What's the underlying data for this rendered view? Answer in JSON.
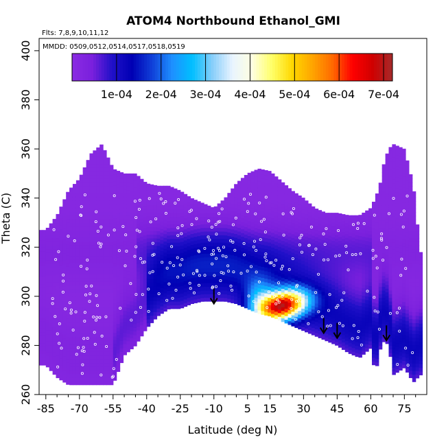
{
  "chart_data": {
    "type": "heatmap",
    "title": "ATOM4 Northbound Ethanol_GMI",
    "flights_note": "Flts: 7,8,9,10,11,12",
    "dates_note": "MMDD: 0509,0512,0514,0517,0518,0519",
    "xlabel": "Latitude (deg N)",
    "ylabel": "Theta (C)",
    "xlim": [
      -88,
      85
    ],
    "ylim": [
      260,
      405
    ],
    "x_ticks": [
      -85,
      -70,
      -55,
      -40,
      -25,
      -10,
      5,
      15,
      30,
      45,
      60,
      75
    ],
    "x_minor_ticks": [
      -80,
      -75,
      -65,
      -60,
      -50,
      -45,
      -35,
      -30,
      -20,
      -15,
      -5,
      0,
      10,
      20,
      25,
      35,
      40,
      50,
      55,
      65,
      70,
      80
    ],
    "y_ticks": [
      260,
      280,
      300,
      320,
      340,
      360,
      380,
      400
    ],
    "colorbar": {
      "min": 0,
      "max": 0.00072,
      "ticks": [
        0.0001,
        0.0002,
        0.0003,
        0.0004,
        0.0005,
        0.0006,
        0.0007
      ],
      "tick_labels": [
        "1e-04",
        "2e-04",
        "3e-04",
        "4e-04",
        "5e-04",
        "6e-04",
        "7e-04"
      ],
      "colors": [
        "#8a2be2",
        "#7a20dd",
        "#2010c8",
        "#0000b4",
        "#1040d8",
        "#1e90ff",
        "#00bfff",
        "#87cefa",
        "#e8f4ff",
        "#ffffe0",
        "#ffff66",
        "#ffd700",
        "#ffa500",
        "#ff6a00",
        "#ff0000",
        "#d00000",
        "#a52a2a"
      ]
    },
    "field_envelope": {
      "lat": [
        -85,
        -80,
        -75,
        -70,
        -65,
        -60,
        -55,
        -50,
        -45,
        -40,
        -35,
        -30,
        -25,
        -20,
        -15,
        -10,
        -5,
        0,
        5,
        10,
        15,
        20,
        25,
        30,
        35,
        40,
        45,
        50,
        55,
        60,
        62,
        64,
        66,
        68,
        70,
        75,
        79,
        82
      ],
      "theta_top": [
        327,
        333,
        343,
        348,
        358,
        362,
        352,
        350,
        350,
        346,
        345,
        345,
        343,
        340,
        338,
        336,
        340,
        346,
        350,
        352,
        351,
        347,
        343,
        340,
        336,
        334,
        334,
        333,
        333,
        336,
        340,
        345,
        355,
        360,
        362,
        360,
        345,
        318
      ],
      "theta_bottom": [
        272,
        267,
        264,
        264,
        264,
        264,
        264,
        276,
        280,
        287,
        292,
        295,
        295,
        297,
        298,
        298,
        298,
        297,
        295,
        293,
        292,
        290,
        288,
        286,
        284,
        282,
        280,
        277,
        275,
        279,
        268,
        278,
        282,
        280,
        268,
        271,
        265,
        268
      ]
    },
    "enhancement_core": {
      "lat_center": 20,
      "theta_center": 296,
      "peak_value": 0.0006,
      "lat_range": [
        4,
        42
      ],
      "theta_range": [
        286,
        310
      ]
    },
    "annotations": [
      {
        "type": "arrow",
        "lat": -10,
        "theta_tip": 297
      },
      {
        "type": "arrow",
        "lat": 39,
        "theta_tip": 285
      },
      {
        "type": "arrow",
        "lat": 45,
        "theta_tip": 283
      },
      {
        "type": "arrow",
        "lat": 67,
        "theta_tip": 282
      }
    ],
    "grid": false,
    "legend": "colorbar top-left inside plot"
  }
}
